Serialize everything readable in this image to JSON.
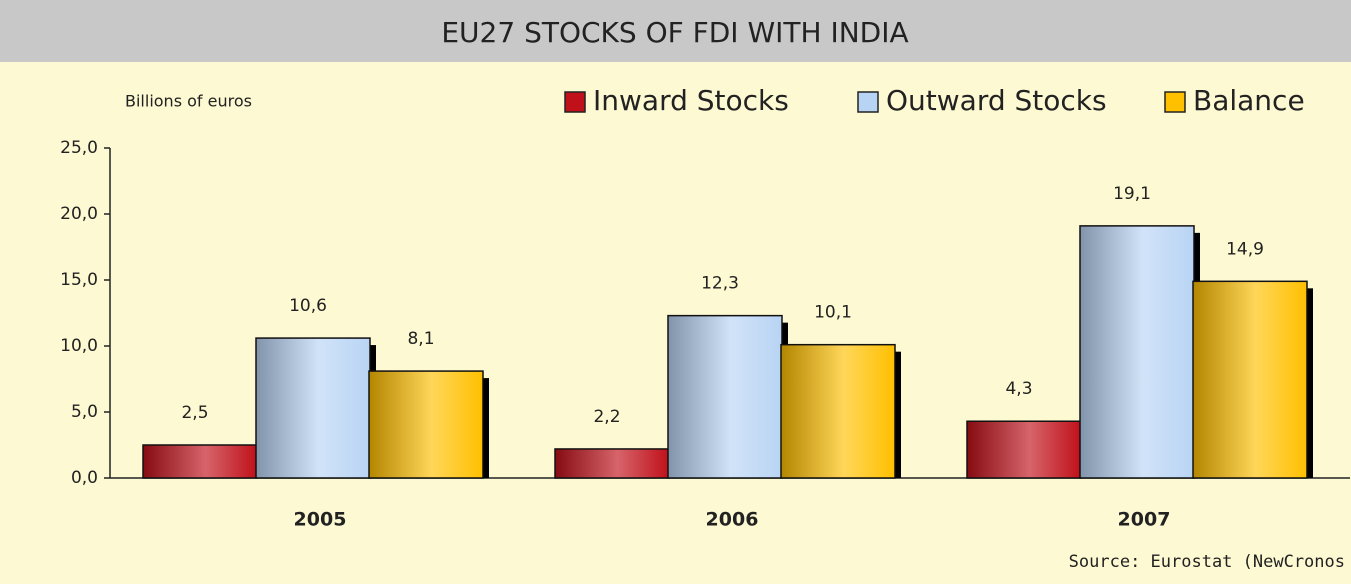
{
  "chart_data": {
    "type": "bar",
    "title": "EU27 STOCKS OF FDI WITH INDIA",
    "y_label": "Billions of euros",
    "source": "Source: Eurostat (NewCronos",
    "categories": [
      "2005",
      "2006",
      "2007"
    ],
    "series": [
      {
        "name": "Inward Stocks",
        "color": "#c0101a",
        "values": [
          2.5,
          2.2,
          4.3
        ],
        "value_labels": [
          "2,5",
          "2,2",
          "4,3"
        ]
      },
      {
        "name": "Outward Stocks",
        "color": "#b8d4f4",
        "values": [
          10.6,
          12.3,
          19.1
        ],
        "value_labels": [
          "10,6",
          "12,3",
          "19,1"
        ]
      },
      {
        "name": "Balance",
        "color": "#ffc000",
        "values": [
          8.1,
          10.1,
          14.9
        ],
        "value_labels": [
          "8,1",
          "10,1",
          "14,9"
        ]
      }
    ],
    "ylim": [
      0,
      25
    ],
    "yticks": [
      {
        "value": 0,
        "label": "0,0"
      },
      {
        "value": 5,
        "label": "5,0"
      },
      {
        "value": 10,
        "label": "10,0"
      },
      {
        "value": 15,
        "label": "15,0"
      },
      {
        "value": 20,
        "label": "20,0"
      },
      {
        "value": 25,
        "label": "25,0"
      }
    ],
    "legend": "top-right",
    "grid": false
  }
}
